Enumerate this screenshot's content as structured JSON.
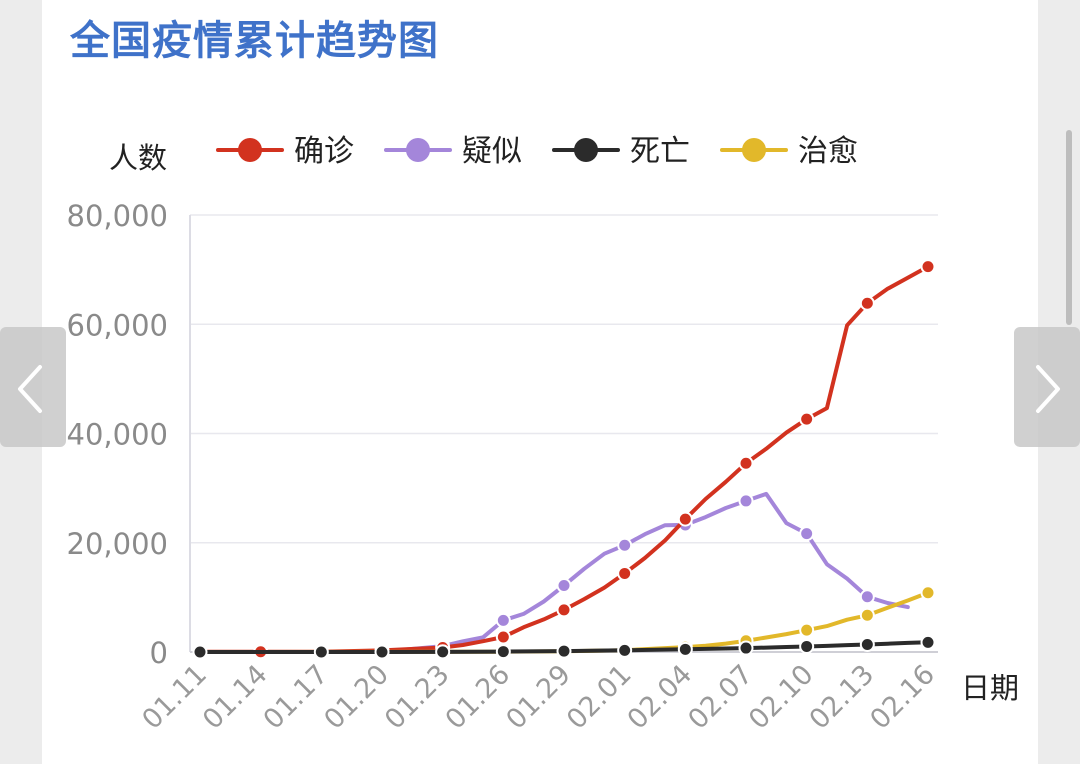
{
  "title": "全国疫情累计趋势图",
  "nav": {
    "prev_icon": "chevron-left-icon",
    "next_icon": "chevron-right-icon"
  },
  "chart_data": {
    "type": "line",
    "ylabel": "人数",
    "xlabel": "日期",
    "ylim": [
      0,
      80000
    ],
    "yticks": [
      "0",
      "20,000",
      "40,000",
      "60,000",
      "80,000"
    ],
    "ytick_values": [
      0,
      20000,
      40000,
      60000,
      80000
    ],
    "xlim": [
      0,
      36
    ],
    "xticks": [
      "01.11",
      "01.14",
      "01.17",
      "01.20",
      "01.23",
      "01.26",
      "01.29",
      "02.01",
      "02.04",
      "02.07",
      "02.10",
      "02.13",
      "02.16"
    ],
    "grid": true,
    "legend_position": "top",
    "series": [
      {
        "name": "确诊",
        "color": "#d2321f",
        "values": [
          [
            0,
            41
          ],
          [
            3,
            41
          ],
          [
            6,
            45
          ],
          [
            9,
            291
          ],
          [
            12,
            830
          ],
          [
            13,
            1287
          ],
          [
            14,
            1975
          ],
          [
            15,
            2744
          ],
          [
            16,
            4515
          ],
          [
            17,
            5974
          ],
          [
            18,
            7711
          ],
          [
            19,
            9692
          ],
          [
            20,
            11791
          ],
          [
            21,
            14380
          ],
          [
            22,
            17205
          ],
          [
            23,
            20438
          ],
          [
            24,
            24324
          ],
          [
            25,
            28018
          ],
          [
            26,
            31161
          ],
          [
            27,
            34546
          ],
          [
            28,
            37198
          ],
          [
            29,
            40171
          ],
          [
            30,
            42638
          ],
          [
            31,
            44653
          ],
          [
            32,
            59804
          ],
          [
            33,
            63851
          ],
          [
            34,
            66492
          ],
          [
            35,
            68500
          ],
          [
            36,
            70548
          ]
        ],
        "markers": [
          0,
          3,
          6,
          9,
          12,
          15,
          18,
          21,
          24,
          27,
          30,
          33,
          36
        ]
      },
      {
        "name": "疑似",
        "color": "#a486da",
        "values": [
          [
            9,
            54
          ],
          [
            12,
            1072
          ],
          [
            13,
            1965
          ],
          [
            14,
            2684
          ],
          [
            15,
            5794
          ],
          [
            16,
            6973
          ],
          [
            17,
            9239
          ],
          [
            18,
            12167
          ],
          [
            19,
            15238
          ],
          [
            20,
            17988
          ],
          [
            21,
            19544
          ],
          [
            22,
            21558
          ],
          [
            23,
            23214
          ],
          [
            24,
            23260
          ],
          [
            25,
            24702
          ],
          [
            26,
            26359
          ],
          [
            27,
            27657
          ],
          [
            28,
            28942
          ],
          [
            29,
            23589
          ],
          [
            30,
            21675
          ],
          [
            31,
            16067
          ],
          [
            32,
            13435
          ],
          [
            33,
            10109
          ],
          [
            34,
            8969
          ],
          [
            35,
            8228
          ]
        ],
        "markers": [
          12,
          15,
          18,
          21,
          24,
          27,
          30,
          33
        ]
      },
      {
        "name": "死亡",
        "color": "#2b2b2b",
        "values": [
          [
            0,
            1
          ],
          [
            6,
            2
          ],
          [
            9,
            6
          ],
          [
            12,
            25
          ],
          [
            15,
            80
          ],
          [
            18,
            170
          ],
          [
            21,
            304
          ],
          [
            24,
            490
          ],
          [
            25,
            563
          ],
          [
            26,
            636
          ],
          [
            27,
            722
          ],
          [
            28,
            811
          ],
          [
            29,
            908
          ],
          [
            30,
            1016
          ],
          [
            31,
            1113
          ],
          [
            32,
            1259
          ],
          [
            33,
            1380
          ],
          [
            34,
            1523
          ],
          [
            35,
            1665
          ],
          [
            36,
            1770
          ]
        ],
        "markers": [
          0,
          3,
          6,
          9,
          12,
          15,
          18,
          21,
          24,
          27,
          30,
          33,
          36
        ]
      },
      {
        "name": "治愈",
        "color": "#e2b82a",
        "values": [
          [
            0,
            0
          ],
          [
            9,
            25
          ],
          [
            12,
            34
          ],
          [
            15,
            51
          ],
          [
            18,
            124
          ],
          [
            21,
            328
          ],
          [
            24,
            892
          ],
          [
            25,
            1153
          ],
          [
            26,
            1540
          ],
          [
            27,
            2050
          ],
          [
            28,
            2649
          ],
          [
            29,
            3281
          ],
          [
            30,
            3996
          ],
          [
            31,
            4740
          ],
          [
            32,
            5911
          ],
          [
            33,
            6723
          ],
          [
            34,
            8096
          ],
          [
            35,
            9419
          ],
          [
            36,
            10844
          ]
        ],
        "markers": [
          0,
          3,
          6,
          9,
          12,
          15,
          18,
          21,
          24,
          27,
          30,
          33,
          36
        ]
      }
    ]
  }
}
